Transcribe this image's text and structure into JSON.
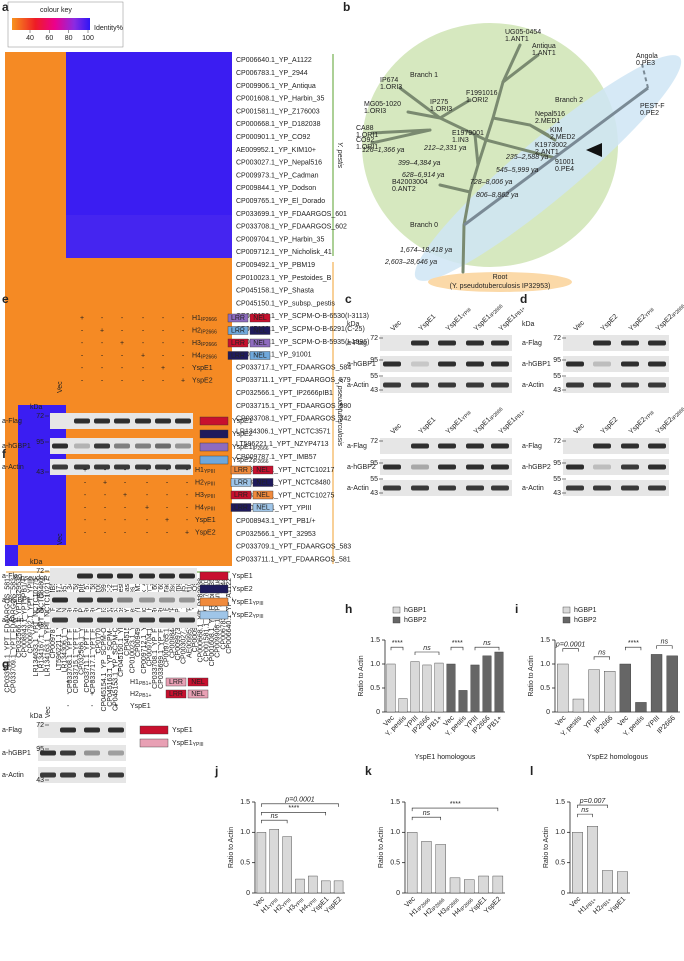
{
  "panels": {
    "a": {
      "label": "a",
      "colour_key": "colour key",
      "key_ticks": [
        40,
        60,
        80,
        100
      ],
      "key_unit": "Identity%",
      "species": [
        "Y. pestis",
        "Y. pseudotuberculosis"
      ],
      "strains": [
        "CP006640.1_YP_A1122",
        "CP006783.1_YP_2944",
        "CP009906.1_YP_Antiqua",
        "CP001608.1_YP_Harbin_35",
        "CP001581.1_YP_Z176003",
        "CP000668.1_YP_D182038",
        "CP000901.1_YP_CO92",
        "AE009952.1_YP_KIM10+",
        "CP003027.1_YP_Nepal516",
        "CP009973.1_YP_Cadman",
        "CP009844.1_YP_Dodson",
        "CP009765.1_YP_El_Dorado",
        "CP033699.1_YP_FDAARGOS_601",
        "CP033708.1_YP_FDAARGOS_602",
        "CP009704.1_YP_Harbin_35",
        "CP009712.1_YP_Nicholisk_41",
        "CP009492.1_YP_PBM19",
        "CP010023.1_YP_Pestoides_B",
        "CP045158.1_YP_Shasta",
        "CP045150.1_YP_subsp._pestis",
        "CP045153.1_YP_SCPM-O-B-6530(I-3113)",
        "CP045163.1_YP_SCPM-O-B-6291(C-25)",
        "CP045154.1_YP_SCPM-O-B-5935(I-1996)",
        "CP017042.1_YP_91001",
        "CP033717.1_YPT_FDAARGOS_584",
        "CP033711.1_YPT_FDAARGOS_579",
        "CP032566.1_YPT_IP2666pIB1",
        "CP033715.1_YPT_FDAARGOS_580",
        "CP033708.1_YPT_FDAARGOS_342",
        "LR134306.1_YPT_NCTC3571",
        "LT596221.1_YPT_NZYP4713",
        "CP009787.1_YPT_IMB57",
        "LR134163.1_YPT_NCTC10217",
        "LR134167.1_YPT_NCTC8480",
        "LR134633.1_YPT_NCTC10275",
        "CP009792.1_YPT_YPIII",
        "CP008943.1_YPT_PB1/+",
        "CP032566.1_YPT_32953",
        "CP033709.1_YPT_FDAARGOS_583",
        "CP033711.1_YPT_FDAARGOS_581"
      ]
    },
    "b": {
      "label": "b",
      "branches": [
        "Branch 1",
        "Branch 2",
        "Branch 0"
      ],
      "strains": [
        [
          "UG05-0454",
          "1.ANT1"
        ],
        [
          "Antiqua",
          "1.ANT1"
        ],
        [
          "IP674",
          "1.ORI3"
        ],
        [
          "F1991016",
          "1.ORI2"
        ],
        [
          "MG05-1020",
          "1.ORI3"
        ],
        [
          "IP275",
          "1.ORI3"
        ],
        [
          "CA88",
          "1.ORI1"
        ],
        [
          "CO92",
          "1.ORI1"
        ],
        [
          "E1979001",
          "1.IN3"
        ],
        [
          "Nepal516",
          "2.MED1"
        ],
        [
          "KIM",
          "2.MED2"
        ],
        [
          "K1973002",
          "2.ANT1"
        ],
        [
          "91001",
          "0.PE4"
        ],
        [
          "B42003004",
          "0.ANT2"
        ],
        [
          "Angola",
          "0.PE3"
        ],
        [
          "PEST-F",
          "0.PE2"
        ]
      ],
      "dates": [
        "126–1,366 ya",
        "212–2,331 ya",
        "399–4,384 ya",
        "628–6,914 ya",
        "235–2,588 ya",
        "545–5,999 ya",
        "728–8,006 ya",
        "806–8,862 ya",
        "1,674–18,418 ya",
        "2,603–28,646 ya"
      ],
      "root": "Root",
      "root_strain": "(Y. pseudotuberculosis IP32953)"
    },
    "c": {
      "label": "c",
      "kda": "kDa",
      "lanes": [
        "Vec",
        "YspE1",
        {
          "main": "YspE1",
          "sub": "YPIII"
        },
        {
          "main": "YspE1",
          "sub": "IP2666"
        },
        {
          "main": "YspE1",
          "sub": "PB1+"
        }
      ],
      "blots": [
        {
          "rows": [
            "a-Flag",
            "a-hGBP1",
            "a-Actin"
          ],
          "markers": [
            72,
            95,
            55,
            43
          ]
        },
        {
          "rows": [
            "a-Flag",
            "a-hGBP2",
            "a-Actin"
          ],
          "markers": [
            72,
            95,
            55,
            43
          ]
        }
      ]
    },
    "d": {
      "label": "d",
      "kda": "kDa",
      "lanes": [
        "Vec",
        "YspE2",
        {
          "main": "YspE2",
          "sub": "YPIII"
        },
        {
          "main": "YspE2",
          "sub": "IP2666"
        }
      ],
      "blots": [
        {
          "rows": [
            "a-Flag",
            "a-hGBP1",
            "a-Actin"
          ],
          "markers": [
            72,
            95,
            55,
            43
          ]
        },
        {
          "rows": [
            "a-Flag",
            "a-hGBP2",
            "a-Actin"
          ],
          "markers": [
            72,
            95,
            55,
            43
          ]
        }
      ]
    },
    "e": {
      "label": "e",
      "kda": "kDa",
      "vec": "Vec",
      "rows": [
        {
          "main": "H1",
          "sub": "IP2666"
        },
        {
          "main": "H2",
          "sub": "IP2666"
        },
        {
          "main": "H3",
          "sub": "IP2666"
        },
        {
          "main": "H4",
          "sub": "IP2666"
        },
        "YspE1",
        "YspE2"
      ],
      "signs": [
        [
          "+",
          "-",
          "-",
          "-",
          "-",
          "-"
        ],
        [
          "-",
          "+",
          "-",
          "-",
          "-",
          "-"
        ],
        [
          "-",
          "-",
          "+",
          "-",
          "-",
          "-"
        ],
        [
          "-",
          "-",
          "-",
          "+",
          "-",
          "-"
        ],
        [
          "-",
          "-",
          "-",
          "-",
          "+",
          "-"
        ],
        [
          "-",
          "-",
          "-",
          "-",
          "-",
          "+"
        ]
      ],
      "domains": [
        "LRR",
        "NEL"
      ],
      "blot_rows": [
        "a-Flag",
        "a-hGBP1",
        "a-Actin"
      ],
      "markers": [
        72,
        95,
        43
      ],
      "legend": [
        "YspE1",
        "YspE2",
        {
          "main": "YspE1",
          "sub": "IP2666"
        },
        {
          "main": "YspE2",
          "sub": "IP2666"
        }
      ]
    },
    "f": {
      "label": "f",
      "kda": "kDa",
      "vec": "Vec",
      "rows": [
        {
          "main": "H1",
          "sub": "YPIII"
        },
        {
          "main": "H2",
          "sub": "YPIII"
        },
        {
          "main": "H3",
          "sub": "YPIII"
        },
        {
          "main": "H4",
          "sub": "YPIII"
        },
        "YspE1",
        "YspE2"
      ],
      "signs": [
        [
          "+",
          "-",
          "-",
          "-",
          "-",
          "-"
        ],
        [
          "-",
          "+",
          "-",
          "-",
          "-",
          "-"
        ],
        [
          "-",
          "-",
          "+",
          "-",
          "-",
          "-"
        ],
        [
          "-",
          "-",
          "-",
          "+",
          "-",
          "-"
        ],
        [
          "-",
          "-",
          "-",
          "-",
          "+",
          "-"
        ],
        [
          "-",
          "-",
          "-",
          "-",
          "-",
          "+"
        ]
      ],
      "domains": [
        "LRR",
        "NEL"
      ],
      "blot_rows": [
        "a-Flag",
        "a-hGBP1",
        "a-Actin"
      ],
      "markers": [
        72,
        95,
        55,
        43
      ],
      "legend": [
        "YspE1",
        "YspE2",
        {
          "main": "YspE1",
          "sub": "YPIII"
        },
        {
          "main": "YspE2",
          "sub": "YPIII"
        }
      ]
    },
    "g": {
      "label": "g",
      "kda": "kDa",
      "vec": "Vec",
      "rows": [
        {
          "main": "H1",
          "sub": "PB1+"
        },
        {
          "main": "H2",
          "sub": "PB1+"
        },
        "YspE1"
      ],
      "signs": [
        [
          "+",
          "-",
          "-"
        ],
        [
          "-",
          "+",
          "-"
        ],
        [
          "-",
          "-",
          "+"
        ]
      ],
      "domains": [
        "LRR",
        "NEL"
      ],
      "blot_rows": [
        "a-Flag",
        "a-hGBP1",
        "a-Actin"
      ],
      "markers": [
        72,
        95,
        43
      ],
      "legend": [
        "YspE1",
        {
          "main": "YspE1",
          "sub": "YPIII"
        }
      ]
    }
  },
  "chart_data": [
    {
      "type": "bar",
      "panel": "h",
      "ylabel": "Ratio to Actin",
      "xlabel": "YspE1 homologous",
      "categories": [
        "Vec",
        "Y. pestis",
        "YPIII",
        "IP2666",
        "PB1+"
      ],
      "series": [
        {
          "name": "hGBP1",
          "color": "#d9d9d9",
          "values": [
            1.0,
            0.28,
            1.05,
            0.98,
            1.02
          ]
        },
        {
          "name": "hGBP2",
          "color": "#666666",
          "values": [
            1.0,
            0.45,
            0.98,
            1.17,
            1.25
          ]
        }
      ],
      "ylim": [
        0,
        1.5
      ],
      "yticks": [
        0,
        0.5,
        {
          "value": 1,
          "label": "1.0"
        },
        1.5
      ],
      "annotations": [
        "****",
        "ns",
        "****",
        "ns"
      ]
    },
    {
      "type": "bar",
      "panel": "i",
      "ylabel": "Ratio to Actin",
      "xlabel": "YspE2 homologous",
      "categories": [
        "Vec",
        "Y. pestis",
        "YPIII",
        "IP2666"
      ],
      "series": [
        {
          "name": "hGBP1",
          "color": "#d9d9d9",
          "values": [
            1.0,
            0.27,
            0.88,
            0.85
          ]
        },
        {
          "name": "hGBP2",
          "color": "#666666",
          "values": [
            1.0,
            0.2,
            1.2,
            1.17
          ]
        }
      ],
      "ylim": [
        0,
        1.5
      ],
      "yticks": [
        0,
        0.5,
        {
          "value": 1,
          "label": "1.0"
        },
        1.5
      ],
      "annotations": [
        "p=0.0001",
        "ns",
        "****",
        "ns"
      ]
    },
    {
      "type": "bar",
      "panel": "j",
      "ylabel": "Ratio to Actin",
      "categories": [
        "Vec",
        {
          "main": "H1",
          "sub": "YPIII"
        },
        {
          "main": "H2",
          "sub": "YPIII"
        },
        {
          "main": "H3",
          "sub": "YPIII"
        },
        {
          "main": "H4",
          "sub": "YPIII"
        },
        "YspE1",
        "YspE2"
      ],
      "color": "#d9d9d9",
      "values": [
        1.0,
        1.05,
        0.93,
        0.23,
        0.28,
        0.2,
        0.2
      ],
      "ylim": [
        0,
        1.5
      ],
      "yticks": [
        0,
        0.5,
        {
          "value": 1,
          "label": "1.0"
        },
        1.5
      ],
      "annotations": [
        "ns",
        "****",
        "p=0.0001"
      ]
    },
    {
      "type": "bar",
      "panel": "k",
      "ylabel": "Ratio to Actin",
      "categories": [
        "Vec",
        {
          "main": "H1",
          "sub": "IP2666"
        },
        {
          "main": "H2",
          "sub": "IP2666"
        },
        {
          "main": "H3",
          "sub": "IP2666"
        },
        {
          "main": "H4",
          "sub": "IP2666"
        },
        "YspE1",
        "YspE2"
      ],
      "color": "#d9d9d9",
      "values": [
        1.0,
        0.85,
        0.8,
        0.25,
        0.22,
        0.28,
        0.28
      ],
      "ylim": [
        0,
        1.5
      ],
      "yticks": [
        0,
        0.5,
        {
          "value": 1,
          "label": "1.0"
        },
        1.5
      ],
      "annotations": [
        "ns",
        "****"
      ]
    },
    {
      "type": "bar",
      "panel": "l",
      "ylabel": "Ratio to Actin",
      "categories": [
        "Vec",
        {
          "main": "H1",
          "sub": "PB1+"
        },
        {
          "main": "H2",
          "sub": "PB1+"
        },
        "YspE1"
      ],
      "color": "#d9d9d9",
      "values": [
        1.0,
        1.1,
        0.37,
        0.35
      ],
      "ylim": [
        0,
        1.5
      ],
      "yticks": [
        0,
        0.5,
        {
          "value": 1,
          "label": "1.0"
        },
        1.5
      ],
      "annotations": [
        "ns",
        "p=0.007"
      ]
    }
  ]
}
